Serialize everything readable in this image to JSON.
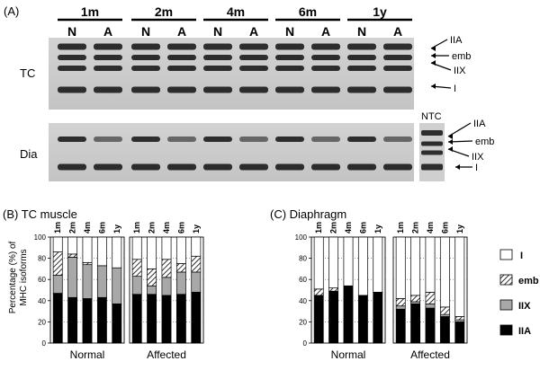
{
  "panel_a": {
    "label": "(A)",
    "ages": [
      "1m",
      "2m",
      "4m",
      "6m",
      "1y"
    ],
    "lane_labels": [
      "N",
      "A"
    ],
    "gels": [
      "TC",
      "Dia"
    ],
    "tc_bands": [
      "IIA",
      "emb",
      "IIX",
      "I"
    ],
    "dia_bands": [
      "IIA",
      "emb",
      "IIX",
      "I"
    ],
    "ntc_label": "NTC"
  },
  "panel_b": {
    "label": "(B) TC muscle",
    "ylabel_line1": "Percentage (%) of",
    "ylabel_line2": "MHC isoforms"
  },
  "panel_c": {
    "label": "(C) Diaphragm"
  },
  "legend": {
    "items": [
      "I",
      "emb",
      "IIX",
      "IIA"
    ]
  },
  "colors": {
    "IIA": "#000000",
    "IIX": "#a8a8a8",
    "emb": "hatched",
    "I": "#ffffff"
  },
  "chart_data": [
    {
      "type": "bar",
      "stacked": true,
      "title": "Normal",
      "panel": "TC muscle",
      "categories": [
        "1m",
        "2m",
        "4m",
        "6m",
        "1y"
      ],
      "ylim": [
        0,
        100
      ],
      "yticks": [
        0,
        20,
        40,
        60,
        80,
        100
      ],
      "series": [
        {
          "name": "IIA",
          "values": [
            47,
            43,
            42,
            43,
            37
          ]
        },
        {
          "name": "IIX",
          "values": [
            17,
            38,
            32,
            30,
            34
          ]
        },
        {
          "name": "emb",
          "values": [
            22,
            3,
            2,
            0,
            0
          ]
        },
        {
          "name": "I",
          "values": [
            14,
            16,
            24,
            27,
            29
          ]
        }
      ]
    },
    {
      "type": "bar",
      "stacked": true,
      "title": "Affected",
      "panel": "TC muscle",
      "categories": [
        "1m",
        "2m",
        "4m",
        "6m",
        "1y"
      ],
      "ylim": [
        0,
        100
      ],
      "yticks": [
        0,
        20,
        40,
        60,
        80,
        100
      ],
      "series": [
        {
          "name": "IIA",
          "values": [
            46,
            46,
            45,
            46,
            48
          ]
        },
        {
          "name": "IIX",
          "values": [
            17,
            8,
            17,
            21,
            19
          ]
        },
        {
          "name": "emb",
          "values": [
            16,
            16,
            17,
            8,
            15
          ]
        },
        {
          "name": "I",
          "values": [
            21,
            30,
            21,
            25,
            18
          ]
        }
      ]
    },
    {
      "type": "bar",
      "stacked": true,
      "title": "Normal",
      "panel": "Diaphragm",
      "categories": [
        "1m",
        "2m",
        "4m",
        "6m",
        "1y"
      ],
      "ylim": [
        0,
        100
      ],
      "yticks": [
        0,
        20,
        40,
        60,
        80,
        100
      ],
      "series": [
        {
          "name": "IIA",
          "values": [
            45,
            49,
            54,
            45,
            48
          ]
        },
        {
          "name": "IIX",
          "values": [
            0,
            0,
            0,
            0,
            0
          ]
        },
        {
          "name": "emb",
          "values": [
            6,
            3,
            0,
            0,
            0
          ]
        },
        {
          "name": "I",
          "values": [
            49,
            48,
            46,
            55,
            52
          ]
        }
      ]
    },
    {
      "type": "bar",
      "stacked": true,
      "title": "Affected",
      "panel": "Diaphragm",
      "categories": [
        "1m",
        "2m",
        "4m",
        "6m",
        "1y"
      ],
      "ylim": [
        0,
        100
      ],
      "yticks": [
        0,
        20,
        40,
        60,
        80,
        100
      ],
      "series": [
        {
          "name": "IIA",
          "values": [
            32,
            37,
            33,
            25,
            20
          ]
        },
        {
          "name": "IIX",
          "values": [
            3,
            2,
            4,
            2,
            2
          ]
        },
        {
          "name": "emb",
          "values": [
            7,
            6,
            11,
            7,
            3
          ]
        },
        {
          "name": "I",
          "values": [
            58,
            55,
            52,
            66,
            75
          ]
        }
      ]
    }
  ]
}
